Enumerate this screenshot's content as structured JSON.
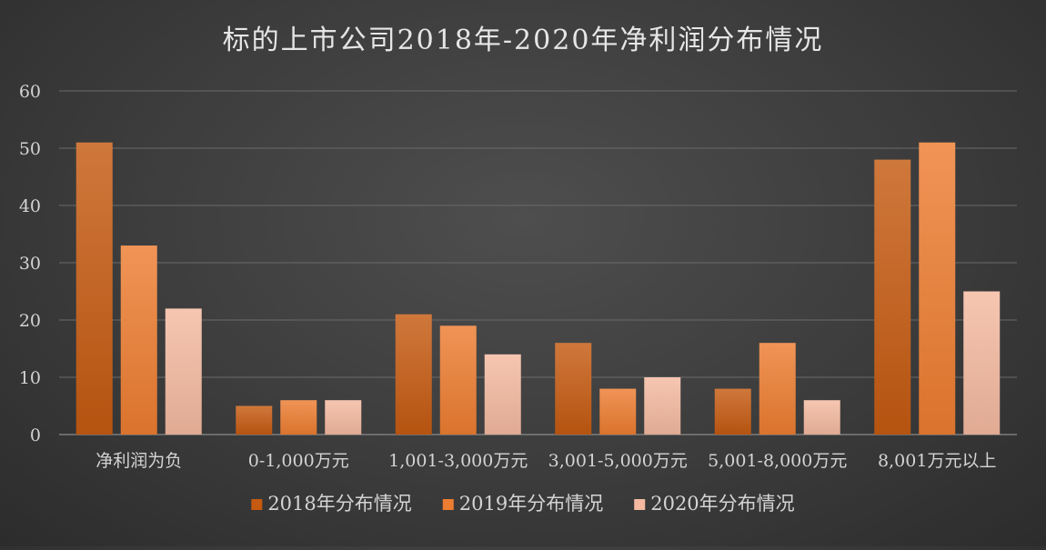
{
  "chart_data": {
    "type": "bar",
    "title": "标的上市公司2018年-2020年净利润分布情况",
    "categories": [
      "净利润为负",
      "0-1,000万元",
      "1,001-3,000万元",
      "3,001-5,000万元",
      "5,001-8,000万元",
      "8,001万元以上"
    ],
    "series": [
      {
        "name": "2018年分布情况",
        "values": [
          51,
          5,
          21,
          16,
          8,
          48
        ],
        "color": "#c55a11"
      },
      {
        "name": "2019年分布情况",
        "values": [
          33,
          6,
          19,
          8,
          16,
          51
        ],
        "color": "#ed7d31"
      },
      {
        "name": "2020年分布情况",
        "values": [
          22,
          6,
          14,
          10,
          6,
          25
        ],
        "color": "#f4b9a0"
      }
    ],
    "ylim": [
      0,
      60
    ],
    "yticks": [
      0,
      10,
      20,
      30,
      40,
      50,
      60
    ],
    "grid": true,
    "legend": "bottom"
  }
}
